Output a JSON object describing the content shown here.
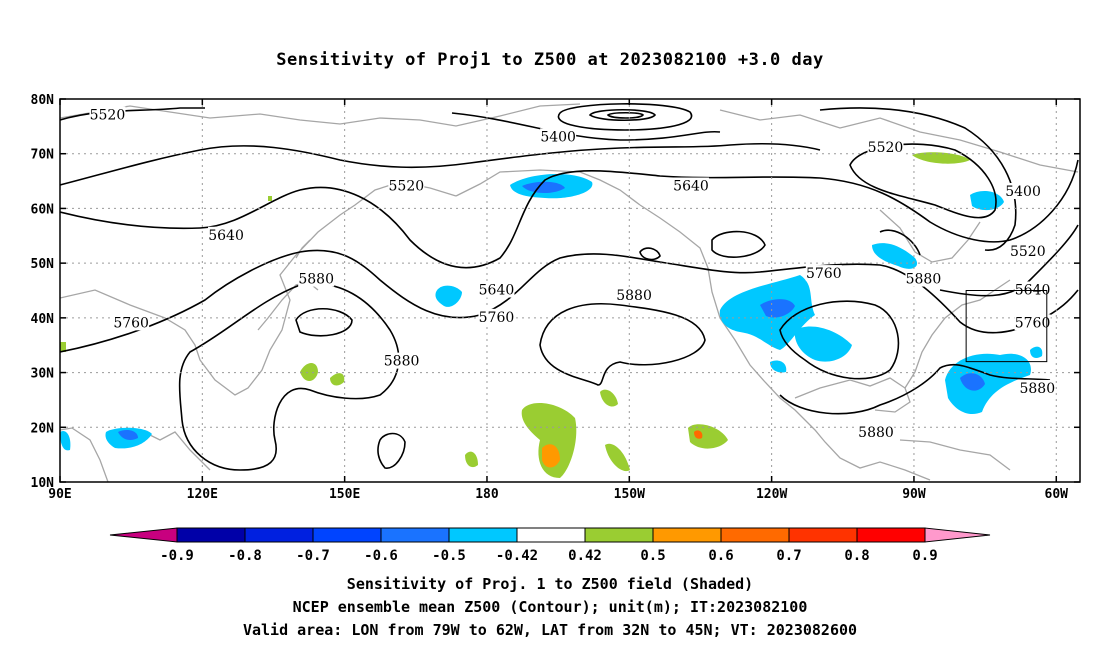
{
  "title": "Sensitivity of Proj1 to Z500 at 2023082100 +3.0 day",
  "map": {
    "lon_range": [
      90,
      305
    ],
    "lat_range": [
      10,
      80
    ],
    "lat_ticks": [
      {
        "lat": 80,
        "label": "80N"
      },
      {
        "lat": 70,
        "label": "70N"
      },
      {
        "lat": 60,
        "label": "60N"
      },
      {
        "lat": 50,
        "label": "50N"
      },
      {
        "lat": 40,
        "label": "40N"
      },
      {
        "lat": 30,
        "label": "30N"
      },
      {
        "lat": 20,
        "label": "20N"
      },
      {
        "lat": 10,
        "label": "10N"
      }
    ],
    "lon_ticks": [
      {
        "lon": 90,
        "label": "90E"
      },
      {
        "lon": 120,
        "label": "120E"
      },
      {
        "lon": 150,
        "label": "150E"
      },
      {
        "lon": 180,
        "label": "180"
      },
      {
        "lon": 210,
        "label": "150W"
      },
      {
        "lon": 240,
        "label": "120W"
      },
      {
        "lon": 270,
        "label": "90W"
      },
      {
        "lon": 300,
        "label": "60W"
      }
    ],
    "valid_box": {
      "lon": [
        281,
        298
      ],
      "lat": [
        32,
        45
      ]
    },
    "contour_labels": [
      {
        "text": "5520",
        "lon": 100,
        "lat": 77
      },
      {
        "text": "5400",
        "lon": 195,
        "lat": 73
      },
      {
        "text": "5520",
        "lon": 264,
        "lat": 71
      },
      {
        "text": "5520",
        "lon": 163,
        "lat": 64
      },
      {
        "text": "5640",
        "lon": 223,
        "lat": 64
      },
      {
        "text": "5400",
        "lon": 293,
        "lat": 63
      },
      {
        "text": "5640",
        "lon": 125,
        "lat": 55
      },
      {
        "text": "5520",
        "lon": 294,
        "lat": 52
      },
      {
        "text": "5880",
        "lon": 144,
        "lat": 47
      },
      {
        "text": "5760",
        "lon": 251,
        "lat": 48
      },
      {
        "text": "5880",
        "lon": 272,
        "lat": 47
      },
      {
        "text": "5640",
        "lon": 182,
        "lat": 45
      },
      {
        "text": "5640",
        "lon": 295,
        "lat": 45
      },
      {
        "text": "5880",
        "lon": 211,
        "lat": 44
      },
      {
        "text": "5760",
        "lon": 182,
        "lat": 40
      },
      {
        "text": "5760",
        "lon": 105,
        "lat": 39
      },
      {
        "text": "5760",
        "lon": 295,
        "lat": 39
      },
      {
        "text": "5880",
        "lon": 162,
        "lat": 32
      },
      {
        "text": "5880",
        "lon": 296,
        "lat": 27
      },
      {
        "text": "5880",
        "lon": 262,
        "lat": 19
      }
    ]
  },
  "colorbar": {
    "labels": [
      "-0.9",
      "-0.8",
      "-0.7",
      "-0.6",
      "-0.5",
      "-0.42",
      "0.42",
      "0.5",
      "0.6",
      "0.7",
      "0.8",
      "0.9"
    ],
    "colors": [
      "#c8007f",
      "#0000a8",
      "#0020e0",
      "#0044ff",
      "#1a73ff",
      "#00c8ff",
      "#ffffff",
      "#9acd32",
      "#ff9900",
      "#ff6a00",
      "#ff3300",
      "#ff0000",
      "#ff99cc"
    ]
  },
  "caption": {
    "line1": "Sensitivity of Proj. 1 to Z500 field (Shaded)",
    "line2": "NCEP ensemble mean Z500 (Contour); unit(m); IT:2023082100",
    "line3": "Valid area: LON from 79W to 62W, LAT from 32N to 45N; VT: 2023082600"
  }
}
